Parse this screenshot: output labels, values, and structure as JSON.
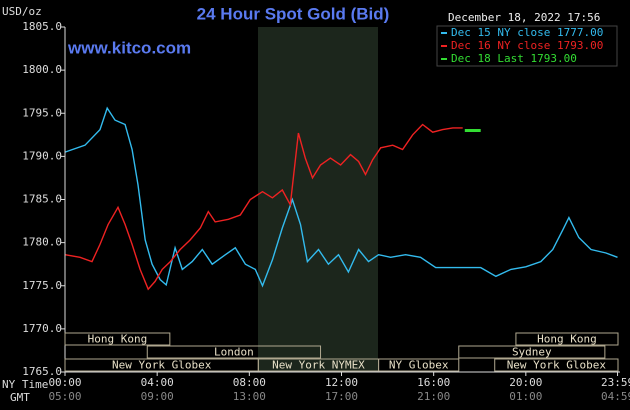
{
  "chart_data": {
    "type": "line",
    "title": "24 Hour Spot Gold (Bid)",
    "subtitle": "December 18, 2022 17:56",
    "watermark": "www.kitco.com",
    "y_label": "USD/oz",
    "x_label": "NY Time",
    "x2_label": "GMT",
    "xlim": [
      0,
      24
    ],
    "ylim": [
      1765,
      1805
    ],
    "yticks": [
      {
        "value": 1765,
        "label": "1765.0"
      },
      {
        "value": 1770,
        "label": "1770.0"
      },
      {
        "value": 1775,
        "label": "1775.0"
      },
      {
        "value": 1780,
        "label": "1780.0"
      },
      {
        "value": 1785,
        "label": "1785.0"
      },
      {
        "value": 1790,
        "label": "1790.0"
      },
      {
        "value": 1795,
        "label": "1795.0"
      },
      {
        "value": 1800,
        "label": "1800.0"
      },
      {
        "value": 1805,
        "label": "1805.0"
      }
    ],
    "xticks": [
      {
        "value": 0,
        "label": "00:00"
      },
      {
        "value": 4,
        "label": "04:00"
      },
      {
        "value": 8,
        "label": "08:00"
      },
      {
        "value": 12,
        "label": "12:00"
      },
      {
        "value": 16,
        "label": "16:00"
      },
      {
        "value": 20,
        "label": "20:00"
      },
      {
        "value": 23.98,
        "label": "23:59"
      }
    ],
    "x2ticks": [
      {
        "value": 0,
        "label": "05:00"
      },
      {
        "value": 4,
        "label": "09:00"
      },
      {
        "value": 8,
        "label": "13:00"
      },
      {
        "value": 12,
        "label": "17:00"
      },
      {
        "value": 16,
        "label": "21:00"
      },
      {
        "value": 20,
        "label": "01:00"
      },
      {
        "value": 23.98,
        "label": "04:59"
      }
    ],
    "sessions": [
      "Hong Kong",
      "Hong Kong",
      "London",
      "Sydney",
      "New York Globex",
      "New York NYMEX",
      "NY Globex",
      "New York Globex"
    ],
    "series": [
      {
        "name": "Dec 15 NY close 1777.00",
        "color": "#33bbee",
        "x": [
          0,
          0.87,
          1.52,
          1.83,
          2.17,
          2.61,
          2.91,
          3.17,
          3.48,
          3.78,
          4.13,
          4.39,
          4.78,
          5.09,
          5.52,
          5.96,
          6.39,
          6.96,
          7.39,
          7.83,
          8.26,
          8.57,
          9,
          9.43,
          9.87,
          10.22,
          10.52,
          11,
          11.43,
          11.87,
          12.3,
          12.74,
          13.17,
          13.61,
          14.13,
          14.78,
          15.43,
          16.09,
          16.96,
          18.04,
          18.7,
          19.35,
          20,
          20.65,
          21.17,
          21.61,
          21.87,
          22.3,
          22.83,
          23.48,
          23.98
        ],
        "values": [
          1790.5,
          1791.3,
          1793.1,
          1795.6,
          1794.2,
          1793.7,
          1790.8,
          1786.7,
          1780.3,
          1777.5,
          1775.7,
          1775.1,
          1779.4,
          1776.9,
          1777.8,
          1779.2,
          1777.5,
          1778.6,
          1779.4,
          1777.5,
          1776.9,
          1775.0,
          1778.0,
          1781.7,
          1785.0,
          1782.1,
          1777.8,
          1779.2,
          1777.5,
          1778.6,
          1776.6,
          1779.2,
          1777.8,
          1778.6,
          1778.3,
          1778.6,
          1778.3,
          1777.1,
          1777.1,
          1777.1,
          1776.1,
          1776.9,
          1777.2,
          1777.8,
          1779.2,
          1781.5,
          1782.9,
          1780.6,
          1779.2,
          1778.8,
          1778.3
        ]
      },
      {
        "name": "Dec 16 NY close 1793.00",
        "color": "#ee2222",
        "x": [
          0,
          0.65,
          1.17,
          1.52,
          1.87,
          2.3,
          2.61,
          2.91,
          3.26,
          3.61,
          3.91,
          4.22,
          4.57,
          5,
          5.43,
          5.87,
          6.22,
          6.52,
          7.09,
          7.61,
          8.04,
          8.57,
          9,
          9.43,
          9.78,
          10.13,
          10.43,
          10.74,
          11.09,
          11.52,
          11.96,
          12.39,
          12.74,
          13.04,
          13.35,
          13.7,
          14.22,
          14.65,
          15.09,
          15.52,
          15.96,
          16.39,
          16.83,
          17.26
        ],
        "values": [
          1778.6,
          1778.3,
          1777.8,
          1779.8,
          1782.1,
          1784.1,
          1782.1,
          1779.8,
          1776.9,
          1774.6,
          1775.5,
          1776.9,
          1777.8,
          1779.2,
          1780.3,
          1781.7,
          1783.6,
          1782.4,
          1782.7,
          1783.2,
          1785.0,
          1785.9,
          1785.2,
          1786.1,
          1784.4,
          1792.7,
          1789.8,
          1787.5,
          1789.0,
          1789.8,
          1789.0,
          1790.2,
          1789.4,
          1787.9,
          1789.6,
          1791.0,
          1791.3,
          1790.8,
          1792.5,
          1793.7,
          1792.8,
          1793.1,
          1793.3,
          1793.3
        ]
      },
      {
        "name": "Dec 18 Last 1793.00",
        "color": "#33dd33",
        "x": [
          17.35,
          18.04
        ],
        "values": [
          1793.0,
          1793.0
        ]
      }
    ]
  }
}
